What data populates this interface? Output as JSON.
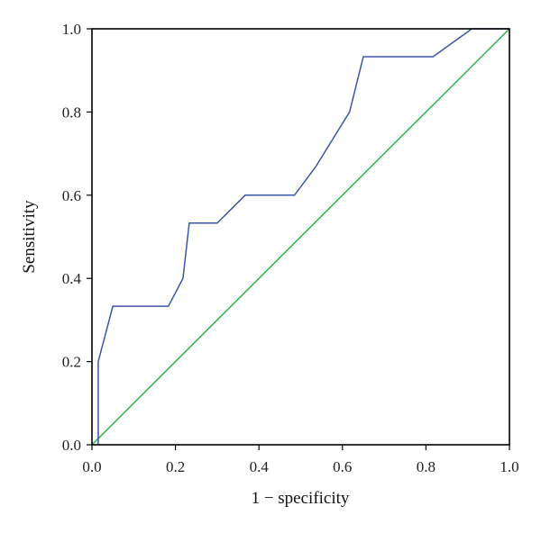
{
  "chart_data": {
    "type": "line",
    "title": "",
    "xlabel": "1 − specificity",
    "ylabel": "Sensitivity",
    "xlim": [
      0,
      1
    ],
    "ylim": [
      0,
      1
    ],
    "grid": false,
    "x_ticks": [
      "0.0",
      "0.2",
      "0.4",
      "0.6",
      "0.8",
      "1.0"
    ],
    "y_ticks": [
      "0.0",
      "0.2",
      "0.4",
      "0.6",
      "0.8",
      "1.0"
    ],
    "series": [
      {
        "color": "#3a56a6",
        "points": [
          [
            0.015,
            0.0
          ],
          [
            0.015,
            0.2
          ],
          [
            0.05,
            0.333
          ],
          [
            0.183,
            0.333
          ],
          [
            0.218,
            0.4
          ],
          [
            0.233,
            0.533
          ],
          [
            0.3,
            0.533
          ],
          [
            0.367,
            0.6
          ],
          [
            0.485,
            0.6
          ],
          [
            0.535,
            0.667
          ],
          [
            0.617,
            0.8
          ],
          [
            0.65,
            0.933
          ],
          [
            0.817,
            0.933
          ],
          [
            0.91,
            1.0
          ],
          [
            1.0,
            1.0
          ]
        ]
      },
      {
        "color": "#2db34a",
        "points": [
          [
            0.0,
            0.0
          ],
          [
            1.0,
            1.0
          ]
        ]
      }
    ]
  }
}
